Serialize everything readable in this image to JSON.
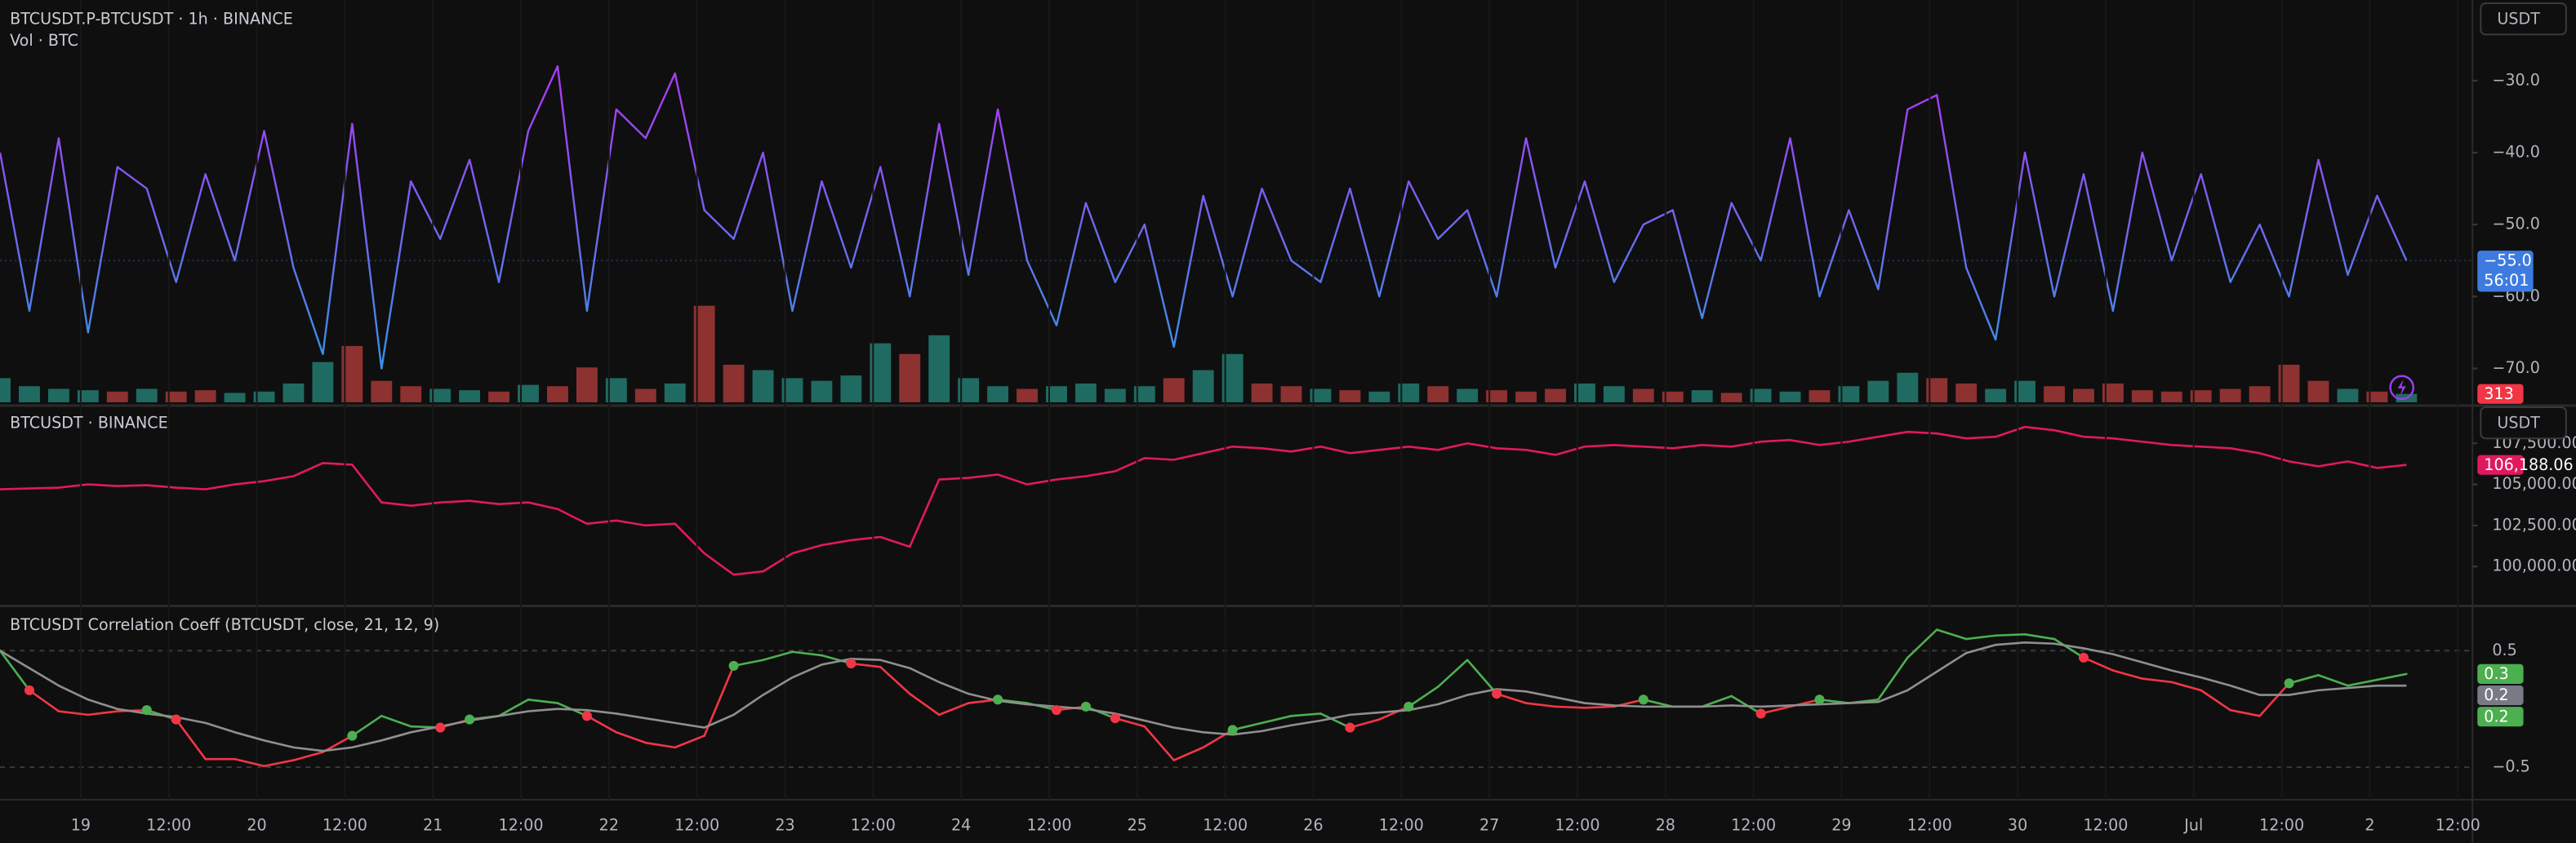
{
  "chart_data": [
    {
      "type": "line",
      "title": "BTCUSDT.P-BTCUSDT · 1h · BINANCE",
      "subtitle": "Vol · BTC",
      "currency": "USDT",
      "x": [
        13,
        17,
        21,
        25,
        29,
        33,
        37,
        41,
        45,
        49,
        53,
        57,
        61,
        65,
        69,
        73,
        77,
        81,
        85,
        89,
        93,
        97,
        101,
        105,
        109,
        113,
        117,
        121,
        125,
        129,
        133,
        137,
        141,
        145,
        149,
        153,
        157,
        161,
        165,
        169,
        173,
        177,
        181,
        185,
        189,
        193,
        197,
        201,
        205,
        209,
        213,
        217,
        221,
        225,
        229,
        233,
        237,
        241,
        245,
        249,
        253,
        257,
        261,
        265,
        269,
        273,
        277,
        281,
        285,
        289,
        293,
        297,
        301,
        305,
        309,
        313,
        317,
        321,
        325,
        329,
        333,
        337,
        341
      ],
      "xlim": [
        13,
        350
      ],
      "ylim": [
        -74.7,
        -18.8
      ],
      "yticks": [
        {
          "value": -30,
          "label": "−30.0"
        },
        {
          "value": -40,
          "label": "−40.0"
        },
        {
          "value": -50,
          "label": "−50.0"
        },
        {
          "value": -60,
          "label": "−60.0"
        },
        {
          "value": -70,
          "label": "−70.0"
        }
      ],
      "y2lim": [
        0,
        15000
      ],
      "series": [
        {
          "type": "line",
          "gradient": [
            "#a63ef4",
            "#3a8fe8"
          ],
          "values": [
            -40,
            -62,
            -38,
            -65,
            -42,
            -45,
            -58,
            -43,
            -55,
            -37,
            -56,
            -68,
            -36,
            -70,
            -44,
            -52,
            -41,
            -58,
            -37,
            -28,
            -62,
            -34,
            -38,
            -29,
            -48,
            -52,
            -40,
            -62,
            -44,
            -56,
            -42,
            -60,
            -36,
            -57,
            -34,
            -55,
            -64,
            -47,
            -58,
            -50,
            -67,
            -46,
            -60,
            -45,
            -55,
            -58,
            -45,
            -60,
            -44,
            -52,
            -48,
            -60,
            -38,
            -56,
            -44,
            -58,
            -50,
            -48,
            -63,
            -47,
            -55,
            -38,
            -60,
            -48,
            -59,
            -34,
            -32,
            -56,
            -66,
            -40,
            -60,
            -43,
            -62,
            -40,
            -55,
            -43,
            -58,
            -50,
            -60,
            -41,
            -57,
            -46,
            -55
          ]
        },
        {
          "type": "bar",
          "axis": "y2",
          "up_color": "#1f6b61",
          "down_color": "#8e3131",
          "values": [
            900,
            600,
            500,
            450,
            400,
            500,
            400,
            450,
            350,
            400,
            700,
            1500,
            2100,
            800,
            600,
            500,
            450,
            400,
            650,
            600,
            1300,
            900,
            500,
            700,
            3600,
            1400,
            1200,
            900,
            800,
            1000,
            2200,
            1800,
            2500,
            900,
            600,
            500,
            600,
            700,
            500,
            600,
            900,
            1200,
            1800,
            700,
            600,
            500,
            450,
            400,
            700,
            600,
            500,
            450,
            400,
            500,
            700,
            600,
            500,
            400,
            450,
            350,
            500,
            400,
            450,
            600,
            800,
            1100,
            900,
            700,
            500,
            800,
            600,
            500,
            700,
            450,
            400,
            450,
            500,
            600,
            1400,
            800,
            500,
            400,
            313
          ]
        }
      ],
      "badges": [
        {
          "value": -55.0,
          "label": "−55.0",
          "sub": "56:01",
          "color": "#3d7be0",
          "line": true
        },
        {
          "value": 313,
          "axis": "y2",
          "label": "313",
          "color": "#f23645"
        }
      ]
    },
    {
      "type": "line",
      "title": "BTCUSDT · BINANCE",
      "currency": "USDT",
      "x": [
        13,
        17,
        21,
        25,
        29,
        33,
        37,
        41,
        45,
        49,
        53,
        57,
        61,
        65,
        69,
        73,
        77,
        81,
        85,
        89,
        93,
        97,
        101,
        105,
        109,
        113,
        117,
        121,
        125,
        129,
        133,
        137,
        141,
        145,
        149,
        153,
        157,
        161,
        165,
        169,
        173,
        177,
        181,
        185,
        189,
        193,
        197,
        201,
        205,
        209,
        213,
        217,
        221,
        225,
        229,
        233,
        237,
        241,
        245,
        249,
        253,
        257,
        261,
        265,
        269,
        273,
        277,
        281,
        285,
        289,
        293,
        297,
        301,
        305,
        309,
        313,
        317,
        321,
        325,
        329,
        333,
        337,
        341
      ],
      "xlim": [
        13,
        350
      ],
      "ylim": [
        97700,
        109600
      ],
      "yticks": [
        {
          "value": 107500,
          "label": "107,500.00"
        },
        {
          "value": 105000,
          "label": "105,000.00"
        },
        {
          "value": 102500,
          "label": "102,500.00"
        },
        {
          "value": 100000,
          "label": "100,000.00"
        }
      ],
      "series": [
        {
          "type": "line",
          "color": "#e0195f",
          "values": [
            104700,
            104750,
            104800,
            105000,
            104900,
            104950,
            104800,
            104700,
            105000,
            105200,
            105500,
            106300,
            106200,
            103900,
            103700,
            103900,
            104000,
            103800,
            103900,
            103500,
            102600,
            102800,
            102500,
            102600,
            100800,
            99500,
            99700,
            100800,
            101300,
            101600,
            101800,
            101200,
            105300,
            105400,
            105600,
            105000,
            105300,
            105500,
            105800,
            106600,
            106500,
            106900,
            107300,
            107200,
            107000,
            107300,
            106900,
            107100,
            107300,
            107100,
            107500,
            107200,
            107100,
            106800,
            107300,
            107400,
            107300,
            107200,
            107400,
            107300,
            107600,
            107700,
            107400,
            107600,
            107900,
            108200,
            108100,
            107800,
            107900,
            108500,
            108300,
            107900,
            107800,
            107600,
            107400,
            107300,
            107200,
            106900,
            106400,
            106100,
            106400,
            106000,
            106188.06
          ]
        }
      ],
      "badges": [
        {
          "value": 106188.06,
          "label": "106,188.06",
          "color": "#e0195f"
        }
      ]
    },
    {
      "type": "line",
      "title": "BTCUSDT Correlation Coeff (BTCUSDT, close, 21, 12, 9)",
      "x": [
        13,
        17,
        21,
        25,
        29,
        33,
        37,
        41,
        45,
        49,
        53,
        57,
        61,
        65,
        69,
        73,
        77,
        81,
        85,
        89,
        93,
        97,
        101,
        105,
        109,
        113,
        117,
        121,
        125,
        129,
        133,
        137,
        141,
        145,
        149,
        153,
        157,
        161,
        165,
        169,
        173,
        177,
        181,
        185,
        189,
        193,
        197,
        201,
        205,
        209,
        213,
        217,
        221,
        225,
        229,
        233,
        237,
        241,
        245,
        249,
        253,
        257,
        261,
        265,
        269,
        273,
        277,
        281,
        285,
        289,
        293,
        297,
        301,
        305,
        309,
        313,
        317,
        321,
        325,
        329,
        333,
        337,
        341
      ],
      "xlim": [
        13,
        350
      ],
      "ylim": [
        -0.75,
        0.87
      ],
      "yticks": [
        0.5,
        {
          "value": -0.5,
          "label": "−0.5"
        }
      ],
      "grid": true,
      "xticks": [
        {
          "value": 24,
          "label": "19"
        },
        {
          "value": 36,
          "label": "12:00"
        },
        {
          "value": 48,
          "label": "20"
        },
        {
          "value": 60,
          "label": "12:00"
        },
        {
          "value": 72,
          "label": "21"
        },
        {
          "value": 84,
          "label": "12:00"
        },
        {
          "value": 96,
          "label": "22"
        },
        {
          "value": 108,
          "label": "12:00"
        },
        {
          "value": 120,
          "label": "23"
        },
        {
          "value": 132,
          "label": "12:00"
        },
        {
          "value": 144,
          "label": "24"
        },
        {
          "value": 156,
          "label": "12:00"
        },
        {
          "value": 168,
          "label": "25"
        },
        {
          "value": 180,
          "label": "12:00"
        },
        {
          "value": 192,
          "label": "26"
        },
        {
          "value": 204,
          "label": "12:00"
        },
        {
          "value": 216,
          "label": "27"
        },
        {
          "value": 228,
          "label": "12:00"
        },
        {
          "value": 240,
          "label": "28"
        },
        {
          "value": 252,
          "label": "12:00"
        },
        {
          "value": 264,
          "label": "29"
        },
        {
          "value": 276,
          "label": "12:00"
        },
        {
          "value": 288,
          "label": "30"
        },
        {
          "value": 300,
          "label": "12:00"
        },
        {
          "value": 312,
          "label": "Jul"
        },
        {
          "value": 324,
          "label": "12:00"
        },
        {
          "value": 336,
          "label": "2"
        },
        {
          "value": 348,
          "label": "12:00"
        }
      ],
      "series": [
        {
          "type": "line",
          "color_above": "#4caf50",
          "color_below": "#f23645",
          "versus": 1,
          "cross_markers": true,
          "values": [
            0.5,
            0.16,
            -0.02,
            -0.05,
            -0.02,
            -0.01,
            -0.09,
            -0.43,
            -0.43,
            -0.49,
            -0.44,
            -0.37,
            -0.23,
            -0.06,
            -0.15,
            -0.16,
            -0.09,
            -0.06,
            0.08,
            0.05,
            -0.06,
            -0.2,
            -0.29,
            -0.33,
            -0.23,
            0.37,
            0.42,
            0.49,
            0.46,
            0.39,
            0.36,
            0.13,
            -0.05,
            0.05,
            0.08,
            0.05,
            -0.01,
            0.02,
            -0.08,
            -0.15,
            -0.44,
            -0.33,
            -0.18,
            -0.12,
            -0.06,
            -0.04,
            -0.16,
            -0.09,
            0.02,
            0.19,
            0.42,
            0.13,
            0.05,
            0.02,
            0.01,
            0.02,
            0.08,
            0.02,
            0.02,
            0.11,
            -0.04,
            0.02,
            0.08,
            0.05,
            0.08,
            0.44,
            0.68,
            0.6,
            0.63,
            0.64,
            0.6,
            0.44,
            0.33,
            0.26,
            0.23,
            0.16,
            -0.01,
            -0.06,
            0.22,
            0.29,
            0.2,
            0.25,
            0.3
          ]
        },
        {
          "type": "line",
          "color": "#8f8f8f",
          "values": [
            0.5,
            0.35,
            0.2,
            0.08,
            0.0,
            -0.04,
            -0.07,
            -0.12,
            -0.2,
            -0.27,
            -0.33,
            -0.36,
            -0.33,
            -0.27,
            -0.2,
            -0.15,
            -0.1,
            -0.06,
            -0.02,
            0.0,
            -0.01,
            -0.04,
            -0.08,
            -0.12,
            -0.16,
            -0.05,
            0.12,
            0.27,
            0.38,
            0.43,
            0.42,
            0.35,
            0.23,
            0.13,
            0.07,
            0.04,
            0.02,
            0.0,
            -0.04,
            -0.1,
            -0.16,
            -0.2,
            -0.22,
            -0.19,
            -0.14,
            -0.1,
            -0.05,
            -0.03,
            -0.01,
            0.04,
            0.12,
            0.17,
            0.15,
            0.1,
            0.05,
            0.03,
            0.02,
            0.02,
            0.02,
            0.03,
            0.02,
            0.03,
            0.04,
            0.05,
            0.06,
            0.16,
            0.32,
            0.48,
            0.55,
            0.57,
            0.56,
            0.52,
            0.47,
            0.4,
            0.33,
            0.27,
            0.2,
            0.12,
            0.12,
            0.16,
            0.18,
            0.2,
            0.2
          ]
        }
      ],
      "badges": [
        {
          "value": 0.3,
          "label": "0.3",
          "color": "#4caf50"
        },
        {
          "value": 0.2,
          "label": "0.2",
          "color": "#787b86"
        },
        {
          "value": 0.2,
          "label": "0.2",
          "color": "#4caf50"
        }
      ]
    }
  ]
}
